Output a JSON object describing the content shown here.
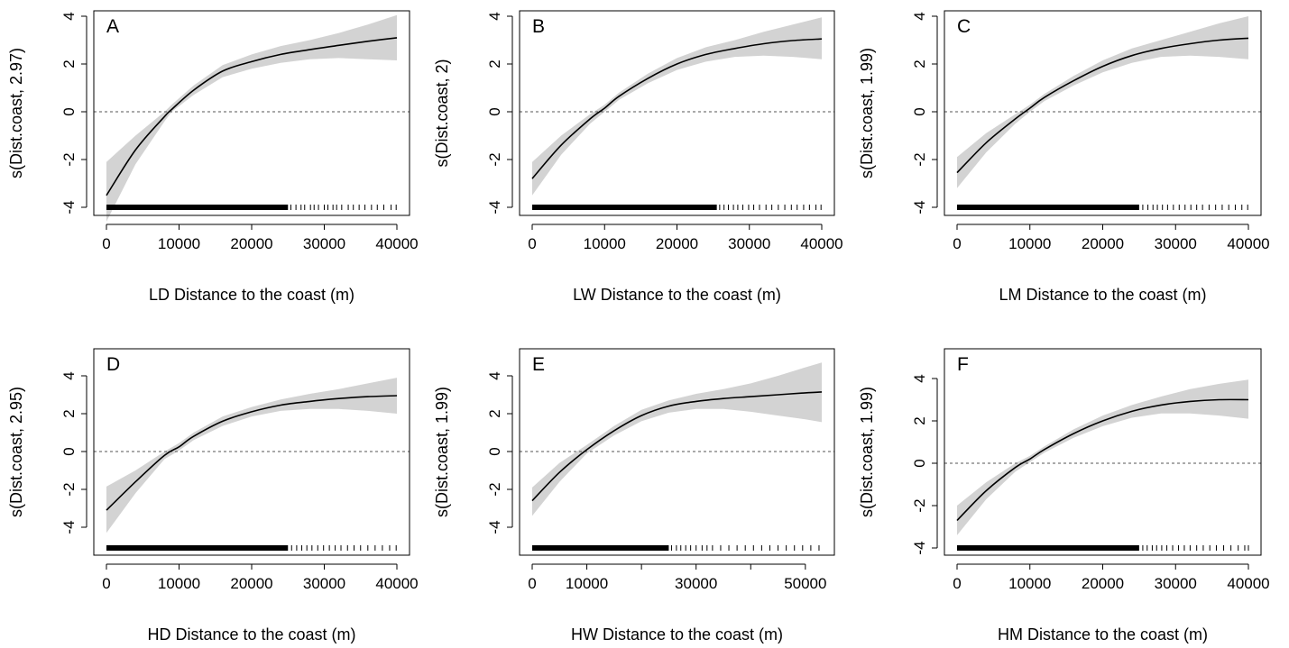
{
  "chart_data": [
    {
      "type": "line",
      "panel": "A",
      "xlabel": "LD Distance to the coast (m)",
      "ylabel": "s(Dist.coast, 2.97)",
      "xlim": [
        0,
        40000
      ],
      "ylim": [
        -4,
        4
      ],
      "xticks": [
        0,
        10000,
        20000,
        30000,
        40000
      ],
      "yticks": [
        -4,
        -2,
        0,
        2,
        4
      ],
      "reference_line": 0,
      "series": [
        {
          "name": "",
          "x": [
            0,
            4000,
            8000,
            9000,
            12000,
            16000,
            20000,
            24000,
            28000,
            32000,
            36000,
            40000
          ],
          "values": [
            -3.5,
            -1.6,
            -0.2,
            0.1,
            0.9,
            1.7,
            2.1,
            2.4,
            2.6,
            2.78,
            2.95,
            3.1
          ]
        },
        {
          "name": "",
          "x": [
            0,
            4000,
            8000,
            9000,
            12000,
            16000,
            20000,
            24000,
            28000,
            32000,
            36000,
            40000
          ],
          "values": [
            -4.6,
            -2.2,
            -0.4,
            0.0,
            0.7,
            1.45,
            1.8,
            2.05,
            2.2,
            2.25,
            2.2,
            2.15
          ]
        },
        {
          "name": "",
          "x": [
            0,
            4000,
            8000,
            9000,
            12000,
            16000,
            20000,
            24000,
            28000,
            32000,
            36000,
            40000
          ],
          "values": [
            -2.1,
            -1.0,
            0.0,
            0.3,
            1.1,
            1.95,
            2.4,
            2.75,
            3.0,
            3.3,
            3.65,
            4.05
          ]
        }
      ],
      "rug": {
        "dense_to": 25000,
        "sparse": [
          25400,
          26100,
          26800,
          27300,
          28100,
          28600,
          29200,
          30000,
          30500,
          31200,
          31700,
          32400,
          33300,
          34000,
          34800,
          35600,
          36500,
          37300,
          38200,
          39200,
          39900
        ]
      }
    },
    {
      "type": "line",
      "panel": "B",
      "xlabel": "LW Distance to the coast (m)",
      "ylabel": "s(Dist.coast, 2)",
      "xlim": [
        0,
        40000
      ],
      "ylim": [
        -4,
        4
      ],
      "xticks": [
        0,
        10000,
        20000,
        30000,
        40000
      ],
      "yticks": [
        -4,
        -2,
        0,
        2,
        4
      ],
      "reference_line": 0,
      "series": [
        {
          "name": "",
          "x": [
            0,
            4000,
            8000,
            10000,
            12000,
            16000,
            20000,
            24000,
            28000,
            32000,
            36000,
            40000
          ],
          "values": [
            -2.8,
            -1.4,
            -0.3,
            0.15,
            0.65,
            1.4,
            2.0,
            2.4,
            2.65,
            2.85,
            2.98,
            3.05
          ]
        },
        {
          "name": "",
          "x": [
            0,
            4000,
            8000,
            10000,
            12000,
            16000,
            20000,
            24000,
            28000,
            32000,
            36000,
            40000
          ],
          "values": [
            -3.5,
            -1.8,
            -0.5,
            0.0,
            0.5,
            1.2,
            1.75,
            2.1,
            2.3,
            2.35,
            2.3,
            2.2
          ]
        },
        {
          "name": "",
          "x": [
            0,
            4000,
            8000,
            10000,
            12000,
            16000,
            20000,
            24000,
            28000,
            32000,
            36000,
            40000
          ],
          "values": [
            -2.1,
            -1.0,
            -0.1,
            0.3,
            0.8,
            1.6,
            2.25,
            2.7,
            3.0,
            3.35,
            3.65,
            3.95
          ]
        }
      ],
      "rug": {
        "dense_to": 25500,
        "sparse": [
          25900,
          26500,
          27100,
          27800,
          28400,
          29100,
          29900,
          30600,
          31400,
          32300,
          33100,
          34000,
          34900,
          35800,
          36600,
          37500,
          38300,
          39200,
          39900
        ]
      }
    },
    {
      "type": "line",
      "panel": "C",
      "xlabel": "LM Distance to the coast (m)",
      "ylabel": "s(Dist.coast, 1.99)",
      "xlim": [
        0,
        40000
      ],
      "ylim": [
        -4,
        4
      ],
      "xticks": [
        0,
        10000,
        20000,
        30000,
        40000
      ],
      "yticks": [
        -4,
        -2,
        0,
        2,
        4
      ],
      "reference_line": 0,
      "series": [
        {
          "name": "",
          "x": [
            0,
            4000,
            8000,
            10000,
            12000,
            16000,
            20000,
            24000,
            28000,
            32000,
            36000,
            40000
          ],
          "values": [
            -2.55,
            -1.3,
            -0.3,
            0.15,
            0.6,
            1.3,
            1.9,
            2.35,
            2.65,
            2.85,
            3.0,
            3.08
          ]
        },
        {
          "name": "",
          "x": [
            0,
            4000,
            8000,
            10000,
            12000,
            16000,
            20000,
            24000,
            28000,
            32000,
            36000,
            40000
          ],
          "values": [
            -3.2,
            -1.7,
            -0.5,
            0.0,
            0.45,
            1.1,
            1.65,
            2.05,
            2.3,
            2.35,
            2.3,
            2.2
          ]
        },
        {
          "name": "",
          "x": [
            0,
            4000,
            8000,
            10000,
            12000,
            16000,
            20000,
            24000,
            28000,
            32000,
            36000,
            40000
          ],
          "values": [
            -1.9,
            -0.9,
            -0.1,
            0.3,
            0.75,
            1.5,
            2.15,
            2.65,
            3.0,
            3.35,
            3.7,
            4.0
          ]
        }
      ],
      "rug": {
        "dense_to": 25000,
        "sparse": [
          25500,
          26200,
          26900,
          27500,
          28200,
          28900,
          29700,
          30500,
          31300,
          32100,
          32900,
          33700,
          34600,
          35500,
          36400,
          37300,
          38200,
          39100,
          39900
        ]
      }
    },
    {
      "type": "line",
      "panel": "D",
      "xlabel": "HD Distance to the coast (m)",
      "ylabel": "s(Dist.coast, 2.95)",
      "xlim": [
        0,
        40000
      ],
      "ylim": [
        -4,
        4
      ],
      "xticks": [
        0,
        10000,
        20000,
        30000,
        40000
      ],
      "yticks": [
        -4,
        -2,
        0,
        2,
        4
      ],
      "reference_line": 0,
      "series": [
        {
          "name": "",
          "x": [
            0,
            4000,
            8000,
            10000,
            12000,
            16000,
            20000,
            24000,
            28000,
            32000,
            36000,
            40000
          ],
          "values": [
            -3.1,
            -1.6,
            -0.2,
            0.25,
            0.8,
            1.6,
            2.1,
            2.45,
            2.65,
            2.8,
            2.9,
            2.95
          ]
        },
        {
          "name": "",
          "x": [
            0,
            4000,
            8000,
            10000,
            12000,
            16000,
            20000,
            24000,
            28000,
            32000,
            36000,
            40000
          ],
          "values": [
            -4.3,
            -2.2,
            -0.4,
            0.05,
            0.6,
            1.35,
            1.85,
            2.15,
            2.25,
            2.25,
            2.15,
            2.0
          ]
        },
        {
          "name": "",
          "x": [
            0,
            4000,
            8000,
            10000,
            12000,
            16000,
            20000,
            24000,
            28000,
            32000,
            36000,
            40000
          ],
          "values": [
            -1.85,
            -1.0,
            0.0,
            0.45,
            1.0,
            1.85,
            2.35,
            2.75,
            3.05,
            3.3,
            3.6,
            3.9
          ]
        }
      ],
      "rug": {
        "dense_to": 25000,
        "sparse": [
          25500,
          26200,
          26900,
          27600,
          28300,
          29100,
          29900,
          30700,
          31500,
          32300,
          33200,
          34100,
          35000,
          36000,
          37000,
          38000,
          39000,
          39900
        ]
      }
    },
    {
      "type": "line",
      "panel": "E",
      "xlabel": "HW Distance to the coast (m)",
      "ylabel": "s(Dist.coast, 1.99)",
      "xlim": [
        0,
        53000
      ],
      "ylim": [
        -4,
        4
      ],
      "xticks": [
        0,
        10000,
        30000,
        50000
      ],
      "minor_xticks": [
        20000,
        40000
      ],
      "yticks": [
        -4,
        -2,
        0,
        2,
        4
      ],
      "reference_line": 0,
      "series": [
        {
          "name": "",
          "x": [
            0,
            5000,
            10000,
            15000,
            20000,
            25000,
            30000,
            35000,
            40000,
            45000,
            50000,
            53000
          ],
          "values": [
            -2.6,
            -1.1,
            0.1,
            1.1,
            1.9,
            2.4,
            2.65,
            2.8,
            2.9,
            3.0,
            3.1,
            3.15
          ]
        },
        {
          "name": "",
          "x": [
            0,
            5000,
            10000,
            15000,
            20000,
            25000,
            30000,
            35000,
            40000,
            45000,
            50000,
            53000
          ],
          "values": [
            -3.4,
            -1.6,
            -0.1,
            0.85,
            1.6,
            2.05,
            2.25,
            2.25,
            2.1,
            1.9,
            1.7,
            1.55
          ]
        },
        {
          "name": "",
          "x": [
            0,
            5000,
            10000,
            15000,
            20000,
            25000,
            30000,
            35000,
            40000,
            45000,
            50000,
            53000
          ],
          "values": [
            -1.9,
            -0.6,
            0.35,
            1.35,
            2.2,
            2.7,
            3.05,
            3.3,
            3.6,
            4.0,
            4.45,
            4.7
          ]
        }
      ],
      "rug": {
        "dense_to": 25000,
        "sparse": [
          25500,
          26400,
          27200,
          28100,
          29000,
          30000,
          31100,
          32000,
          33000,
          34500,
          36000,
          37500,
          39000,
          40500,
          42000,
          43500,
          45000,
          46500,
          48000,
          49500,
          51000,
          52500
        ]
      }
    },
    {
      "type": "line",
      "panel": "F",
      "xlabel": "HM Distance to the coast (m)",
      "ylabel": "s(Dist.coast, 1.99)",
      "xlim": [
        0,
        40000
      ],
      "ylim": [
        -4,
        4
      ],
      "xticks": [
        0,
        10000,
        20000,
        30000,
        40000
      ],
      "yticks": [
        -4,
        -2,
        0,
        2,
        4
      ],
      "reference_line": 0,
      "series": [
        {
          "name": "",
          "x": [
            0,
            4000,
            8000,
            10000,
            12000,
            16000,
            20000,
            24000,
            28000,
            32000,
            36000,
            40000
          ],
          "values": [
            -2.7,
            -1.3,
            -0.2,
            0.2,
            0.65,
            1.4,
            2.0,
            2.45,
            2.75,
            2.92,
            3.0,
            3.0
          ]
        },
        {
          "name": "",
          "x": [
            0,
            4000,
            8000,
            10000,
            12000,
            16000,
            20000,
            24000,
            28000,
            32000,
            36000,
            40000
          ],
          "values": [
            -3.4,
            -1.7,
            -0.4,
            0.05,
            0.5,
            1.2,
            1.75,
            2.15,
            2.35,
            2.35,
            2.25,
            2.1
          ]
        },
        {
          "name": "",
          "x": [
            0,
            4000,
            8000,
            10000,
            12000,
            16000,
            20000,
            24000,
            28000,
            32000,
            36000,
            40000
          ],
          "values": [
            -2.0,
            -0.9,
            0.0,
            0.35,
            0.8,
            1.6,
            2.25,
            2.75,
            3.15,
            3.5,
            3.75,
            3.95
          ]
        }
      ],
      "rug": {
        "dense_to": 25000,
        "sparse": [
          25500,
          26100,
          26800,
          27400,
          28100,
          28800,
          29600,
          30400,
          31200,
          32000,
          32900,
          33800,
          34700,
          35600,
          36600,
          37600,
          38600,
          39500,
          40000
        ]
      }
    }
  ]
}
